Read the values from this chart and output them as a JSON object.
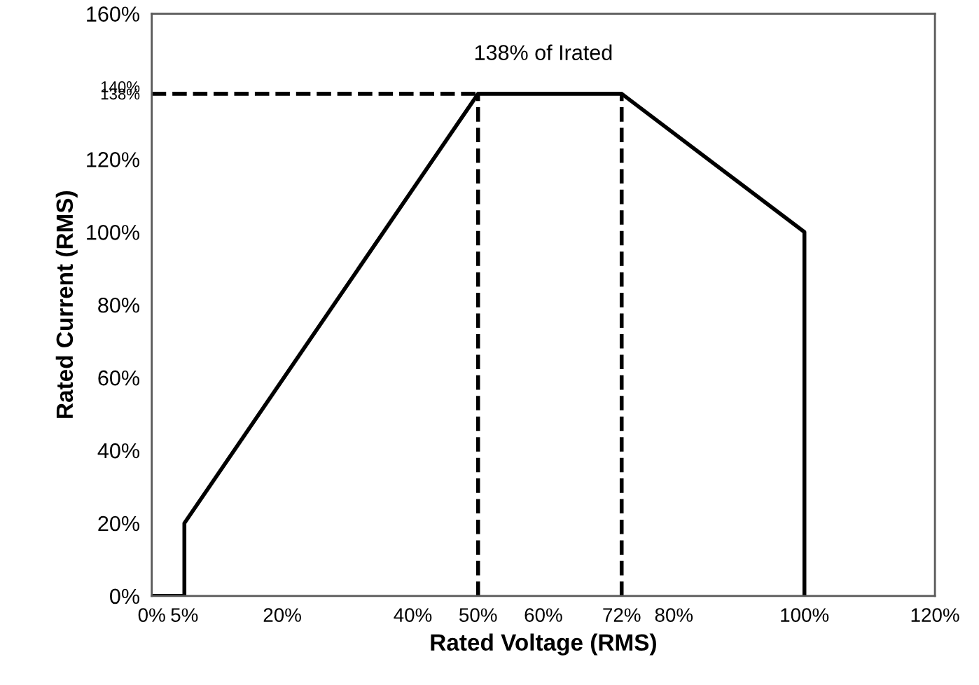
{
  "chart_data": {
    "type": "line",
    "xlabel": "Rated Voltage (RMS)",
    "ylabel": "Rated Current (RMS)",
    "xlim": [
      0,
      120
    ],
    "ylim": [
      0,
      160
    ],
    "xticks": [
      {
        "value": 0,
        "label": "0%"
      },
      {
        "value": 5,
        "label": "5%"
      },
      {
        "value": 20,
        "label": "20%"
      },
      {
        "value": 40,
        "label": "40%"
      },
      {
        "value": 50,
        "label": "50%"
      },
      {
        "value": 60,
        "label": "60%"
      },
      {
        "value": 72,
        "label": "72%"
      },
      {
        "value": 80,
        "label": "80%"
      },
      {
        "value": 100,
        "label": "100%"
      },
      {
        "value": 120,
        "label": "120%"
      }
    ],
    "yticks": [
      {
        "value": 0,
        "label": "0%"
      },
      {
        "value": 20,
        "label": "20%"
      },
      {
        "value": 40,
        "label": "40%"
      },
      {
        "value": 60,
        "label": "60%"
      },
      {
        "value": 80,
        "label": "80%"
      },
      {
        "value": 100,
        "label": "100%"
      },
      {
        "value": 120,
        "label": "120%"
      },
      {
        "value": 138,
        "label": "138%"
      },
      {
        "value": 140,
        "label": "140%"
      },
      {
        "value": 160,
        "label": "160%"
      }
    ],
    "series": [
      {
        "color": "#000000",
        "x": [
          0,
          5,
          5,
          50,
          72,
          100,
          100
        ],
        "values": [
          0,
          0,
          20,
          138,
          138,
          100,
          0
        ],
        "line_style": "solid"
      },
      {
        "color": "#000000",
        "x": [
          0,
          50
        ],
        "values": [
          138,
          138
        ],
        "line_style": "dashed"
      },
      {
        "color": "#000000",
        "x": [
          50,
          50
        ],
        "values": [
          0,
          138
        ],
        "line_style": "dashed"
      },
      {
        "color": "#000000",
        "x": [
          72,
          72
        ],
        "values": [
          0,
          138
        ],
        "line_style": "dashed"
      }
    ],
    "annotations": [
      "138% of Irated"
    ],
    "grid": false,
    "legend": false,
    "marker": "none"
  }
}
